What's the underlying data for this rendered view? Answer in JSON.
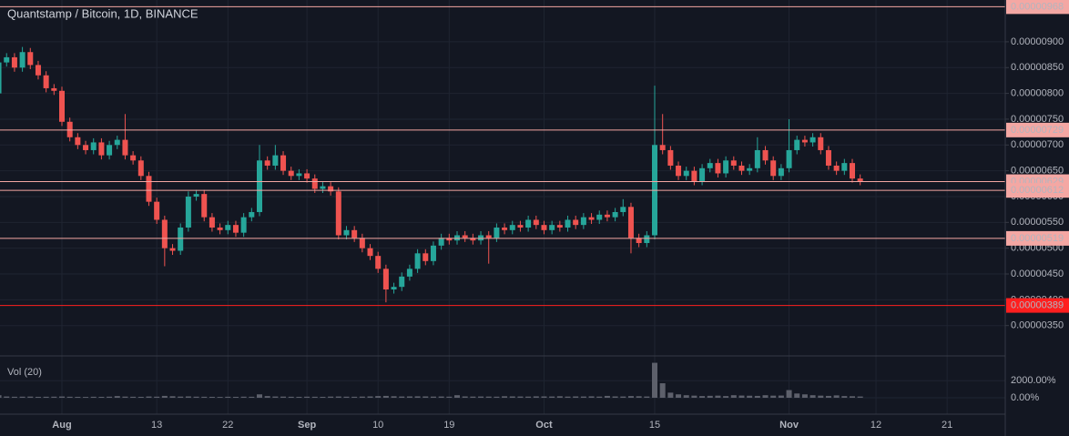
{
  "chart_data": {
    "type": "candlestick",
    "title": "Quantstamp / Bitcoin, 1D, BINANCE",
    "up_color": "#26a69a",
    "down_color": "#ef5350",
    "grid": true,
    "categories": [
      null,
      null,
      null,
      null,
      null,
      null,
      null,
      null,
      "Aug",
      null,
      null,
      null,
      null,
      null,
      null,
      null,
      null,
      null,
      null,
      null,
      "13",
      null,
      null,
      null,
      null,
      null,
      null,
      null,
      null,
      "22",
      null,
      null,
      null,
      null,
      null,
      null,
      null,
      null,
      null,
      "Sep",
      null,
      null,
      null,
      null,
      null,
      null,
      null,
      null,
      "10",
      null,
      null,
      null,
      null,
      null,
      null,
      null,
      null,
      "19",
      null,
      null,
      null,
      null,
      null,
      null,
      null,
      null,
      null,
      null,
      null,
      "Oct",
      null,
      null,
      null,
      null,
      null,
      null,
      null,
      null,
      null,
      null,
      null,
      null,
      null,
      "15",
      null,
      null,
      null,
      null,
      null,
      null,
      null,
      null,
      null,
      null,
      null,
      null,
      null,
      null,
      null,
      null,
      "Nov",
      null,
      null,
      null,
      null,
      null,
      null,
      null,
      null,
      null,
      null,
      "12",
      null,
      null,
      null,
      null,
      null,
      null,
      null,
      null,
      "21"
    ],
    "open": [
      8e-06,
      8.6e-06,
      8.7e-06,
      8.5e-06,
      8.8e-06,
      8.55e-06,
      8.35e-06,
      8.1e-06,
      8.05e-06,
      7.45e-06,
      7.15e-06,
      7e-06,
      6.9e-06,
      7.05e-06,
      6.8e-06,
      7e-06,
      7.1e-06,
      6.8e-06,
      6.7e-06,
      6.4e-06,
      5.9e-06,
      5.55e-06,
      5e-06,
      4.95e-06,
      5.4e-06,
      6e-06,
      6.05e-06,
      5.6e-06,
      5.4e-06,
      5.35e-06,
      5.45e-06,
      5.3e-06,
      5.6e-06,
      5.7e-06,
      6.7e-06,
      6.6e-06,
      6.8e-06,
      6.5e-06,
      6.4e-06,
      6.45e-06,
      6.35e-06,
      6.15e-06,
      6.2e-06,
      6.1e-06,
      5.25e-06,
      5.35e-06,
      5.2e-06,
      5e-06,
      4.85e-06,
      4.6e-06,
      4.2e-06,
      4.25e-06,
      4.45e-06,
      4.6e-06,
      4.9e-06,
      4.75e-06,
      5.05e-06,
      5.2e-06,
      5.15e-06,
      5.25e-06,
      5.2e-06,
      5.15e-06,
      5.25e-06,
      5.2e-06,
      5.4e-06,
      5.35e-06,
      5.45e-06,
      5.4e-06,
      5.55e-06,
      5.45e-06,
      5.35e-06,
      5.45e-06,
      5.4e-06,
      5.55e-06,
      5.45e-06,
      5.6e-06,
      5.55e-06,
      5.65e-06,
      5.6e-06,
      5.7e-06,
      5.8e-06,
      5.2e-06,
      5.1e-06,
      5.25e-06,
      7e-06,
      6.9e-06,
      6.6e-06,
      6.4e-06,
      6.5e-06,
      6.3e-06,
      6.55e-06,
      6.65e-06,
      6.45e-06,
      6.7e-06,
      6.6e-06,
      6.5e-06,
      6.55e-06,
      6.9e-06,
      6.7e-06,
      6.4e-06,
      6.55e-06,
      6.9e-06,
      7.1e-06,
      7.05e-06,
      7.15e-06,
      6.9e-06,
      6.6e-06,
      6.5e-06,
      6.65e-06,
      6.35e-06,
      null,
      null,
      null,
      null,
      null,
      null,
      null,
      null,
      null,
      null,
      null
    ],
    "high": [
      9.45e-06,
      8.78e-06,
      8.78e-06,
      8.9e-06,
      8.88e-06,
      8.63e-06,
      8.43e-06,
      8.18e-06,
      8.13e-06,
      7.53e-06,
      7.23e-06,
      7.08e-06,
      7.13e-06,
      7.13e-06,
      7.08e-06,
      7.18e-06,
      7.6e-06,
      6.88e-06,
      6.78e-06,
      6.48e-06,
      5.98e-06,
      5.63e-06,
      5.08e-06,
      5.48e-06,
      6.1e-06,
      6.13e-06,
      6.13e-06,
      5.68e-06,
      5.48e-06,
      5.53e-06,
      5.53e-06,
      5.68e-06,
      5.78e-06,
      7e-06,
      6.78e-06,
      7e-06,
      6.88e-06,
      6.58e-06,
      6.53e-06,
      6.53e-06,
      6.43e-06,
      6.28e-06,
      6.28e-06,
      6.18e-06,
      5.43e-06,
      5.43e-06,
      5.28e-06,
      5.08e-06,
      4.93e-06,
      4.68e-06,
      4.33e-06,
      4.53e-06,
      4.68e-06,
      4.98e-06,
      4.98e-06,
      5.13e-06,
      5.28e-06,
      5.28e-06,
      5.33e-06,
      5.33e-06,
      5.28e-06,
      5.33e-06,
      5.33e-06,
      5.48e-06,
      5.48e-06,
      5.53e-06,
      5.53e-06,
      5.63e-06,
      5.63e-06,
      5.53e-06,
      5.53e-06,
      5.53e-06,
      5.63e-06,
      5.63e-06,
      5.68e-06,
      5.68e-06,
      5.73e-06,
      5.73e-06,
      5.78e-06,
      5.95e-06,
      5.88e-06,
      5.28e-06,
      5.33e-06,
      8.15e-06,
      7.6e-06,
      6.98e-06,
      6.68e-06,
      6.58e-06,
      6.58e-06,
      6.63e-06,
      6.73e-06,
      6.73e-06,
      6.78e-06,
      6.78e-06,
      6.68e-06,
      6.63e-06,
      7.15e-06,
      6.98e-06,
      6.78e-06,
      6.63e-06,
      7.5e-06,
      7.18e-06,
      7.18e-06,
      7.23e-06,
      7.23e-06,
      6.98e-06,
      6.68e-06,
      6.73e-06,
      6.73e-06,
      6.43e-06,
      null,
      null,
      null,
      null,
      null,
      null,
      null,
      null,
      null,
      null,
      null
    ],
    "low": [
      7.9e-06,
      8.52e-06,
      8.42e-06,
      8.42e-06,
      8.47e-06,
      8.27e-06,
      8.02e-06,
      7.97e-06,
      7.37e-06,
      7.07e-06,
      6.92e-06,
      6.82e-06,
      6.82e-06,
      6.72e-06,
      6.72e-06,
      6.92e-06,
      6.72e-06,
      6.62e-06,
      6.32e-06,
      5.82e-06,
      5.47e-06,
      4.65e-06,
      4.87e-06,
      4.87e-06,
      5.32e-06,
      5.92e-06,
      5.52e-06,
      5.32e-06,
      5.27e-06,
      5.27e-06,
      5.22e-06,
      5.22e-06,
      5.52e-06,
      5.62e-06,
      6.52e-06,
      6.52e-06,
      6.42e-06,
      6.32e-06,
      6.32e-06,
      6.27e-06,
      6.07e-06,
      6.07e-06,
      6.02e-06,
      5.17e-06,
      5.17e-06,
      5.12e-06,
      4.92e-06,
      4.77e-06,
      4.52e-06,
      3.95e-06,
      4.12e-06,
      4.17e-06,
      4.37e-06,
      4.52e-06,
      4.67e-06,
      4.67e-06,
      4.97e-06,
      5.07e-06,
      5.07e-06,
      5.12e-06,
      5.07e-06,
      5.07e-06,
      4.7e-06,
      5.12e-06,
      5.27e-06,
      5.27e-06,
      5.32e-06,
      5.32e-06,
      5.37e-06,
      5.27e-06,
      5.27e-06,
      5.32e-06,
      5.32e-06,
      5.37e-06,
      5.37e-06,
      5.47e-06,
      5.47e-06,
      5.52e-06,
      5.52e-06,
      5.62e-06,
      4.9e-06,
      5.02e-06,
      5.02e-06,
      5.17e-06,
      6.82e-06,
      6.52e-06,
      6.32e-06,
      6.32e-06,
      6.22e-06,
      6.22e-06,
      6.47e-06,
      6.37e-06,
      6.37e-06,
      6.52e-06,
      6.42e-06,
      6.42e-06,
      6.47e-06,
      6.62e-06,
      6.32e-06,
      6.32e-06,
      6.47e-06,
      6.82e-06,
      6.97e-06,
      6.97e-06,
      6.82e-06,
      6.52e-06,
      6.42e-06,
      6.42e-06,
      6.27e-06,
      6.22e-06,
      null,
      null,
      null,
      null,
      null,
      null,
      null,
      null,
      null,
      null,
      null
    ],
    "close": [
      8.6e-06,
      8.7e-06,
      8.5e-06,
      8.8e-06,
      8.55e-06,
      8.35e-06,
      8.1e-06,
      8.05e-06,
      7.45e-06,
      7.15e-06,
      7e-06,
      6.9e-06,
      7.05e-06,
      6.8e-06,
      7e-06,
      7.1e-06,
      6.8e-06,
      6.7e-06,
      6.4e-06,
      5.9e-06,
      5.55e-06,
      5e-06,
      4.95e-06,
      5.4e-06,
      6e-06,
      6.05e-06,
      5.6e-06,
      5.4e-06,
      5.35e-06,
      5.45e-06,
      5.3e-06,
      5.6e-06,
      5.7e-06,
      6.7e-06,
      6.6e-06,
      6.8e-06,
      6.5e-06,
      6.4e-06,
      6.45e-06,
      6.35e-06,
      6.15e-06,
      6.2e-06,
      6.1e-06,
      5.25e-06,
      5.35e-06,
      5.2e-06,
      5e-06,
      4.85e-06,
      4.6e-06,
      4.2e-06,
      4.25e-06,
      4.45e-06,
      4.6e-06,
      4.9e-06,
      4.75e-06,
      5.05e-06,
      5.2e-06,
      5.15e-06,
      5.25e-06,
      5.2e-06,
      5.15e-06,
      5.25e-06,
      5.2e-06,
      5.4e-06,
      5.35e-06,
      5.45e-06,
      5.4e-06,
      5.55e-06,
      5.45e-06,
      5.35e-06,
      5.45e-06,
      5.4e-06,
      5.55e-06,
      5.45e-06,
      5.6e-06,
      5.55e-06,
      5.65e-06,
      5.6e-06,
      5.7e-06,
      5.8e-06,
      5.2e-06,
      5.1e-06,
      5.25e-06,
      7e-06,
      6.9e-06,
      6.6e-06,
      6.4e-06,
      6.5e-06,
      6.3e-06,
      6.55e-06,
      6.65e-06,
      6.45e-06,
      6.7e-06,
      6.6e-06,
      6.5e-06,
      6.55e-06,
      6.9e-06,
      6.7e-06,
      6.4e-06,
      6.55e-06,
      6.9e-06,
      7.1e-06,
      7.05e-06,
      7.15e-06,
      6.9e-06,
      6.6e-06,
      6.5e-06,
      6.65e-06,
      6.35e-06,
      6.3e-06,
      null,
      null,
      null,
      null,
      null,
      null,
      null,
      null,
      null,
      null,
      null
    ],
    "ylim": [
      2.93e-06,
      9.81e-06
    ],
    "yticks": [
      {
        "value": 3.5e-06,
        "label": "0.00000350"
      },
      {
        "value": 4e-06,
        "label": "0.00000400"
      },
      {
        "value": 4.5e-06,
        "label": "0.00000450"
      },
      {
        "value": 5e-06,
        "label": "0.00000500"
      },
      {
        "value": 5.5e-06,
        "label": "0.00000550"
      },
      {
        "value": 6e-06,
        "label": "0.00000600"
      },
      {
        "value": 6.5e-06,
        "label": "0.00000650"
      },
      {
        "value": 7e-06,
        "label": "0.00000700"
      },
      {
        "value": 7.5e-06,
        "label": "0.00000750"
      },
      {
        "value": 8e-06,
        "label": "0.00000800"
      },
      {
        "value": 8.5e-06,
        "label": "0.00000850"
      },
      {
        "value": 9e-06,
        "label": "0.00000900"
      }
    ],
    "levels": [
      {
        "value": 9.68e-06,
        "label": "0.00000968",
        "color": "#f4a7a3"
      },
      {
        "value": 7.29e-06,
        "label": "0.00000729",
        "color": "#f4a7a3"
      },
      {
        "value": 6.29e-06,
        "label": "0.00000629",
        "color": "#f4a7a3"
      },
      {
        "value": 6.12e-06,
        "label": "0.00000612",
        "color": "#f4a7a3"
      },
      {
        "value": 5.19e-06,
        "label": "0.00000519",
        "color": "#f4a7a3"
      },
      {
        "value": 3.89e-06,
        "label": "0.00000389",
        "color": "#ff1f1f"
      }
    ],
    "volume": {
      "name": "Vol (20)",
      "color": "#5d606b",
      "values": [
        300,
        150,
        120,
        130,
        140,
        110,
        120,
        130,
        150,
        120,
        110,
        100,
        120,
        110,
        130,
        200,
        140,
        120,
        110,
        150,
        130,
        220,
        180,
        140,
        160,
        130,
        120,
        110,
        100,
        120,
        110,
        130,
        120,
        400,
        200,
        150,
        140,
        120,
        110,
        130,
        120,
        110,
        140,
        150,
        130,
        120,
        140,
        160,
        200,
        220,
        180,
        150,
        160,
        170,
        160,
        140,
        150,
        130,
        300,
        160,
        140,
        150,
        140,
        130,
        180,
        160,
        150,
        140,
        170,
        160,
        150,
        180,
        140,
        160,
        150,
        170,
        140,
        220,
        160,
        150,
        200,
        180,
        150,
        4100,
        1700,
        600,
        400,
        300,
        250,
        200,
        230,
        250,
        200,
        300,
        260,
        240,
        220,
        300,
        250,
        260,
        900,
        500,
        400,
        300,
        250,
        220,
        280,
        200,
        180,
        150,
        null,
        null,
        null,
        null,
        null,
        null,
        null,
        null,
        null,
        null,
        null
      ],
      "ylim": [
        0,
        4800
      ],
      "yticks": [
        {
          "value": 0,
          "label": "0.00%"
        },
        {
          "value": 2000,
          "label": "2000.00%"
        }
      ]
    }
  }
}
